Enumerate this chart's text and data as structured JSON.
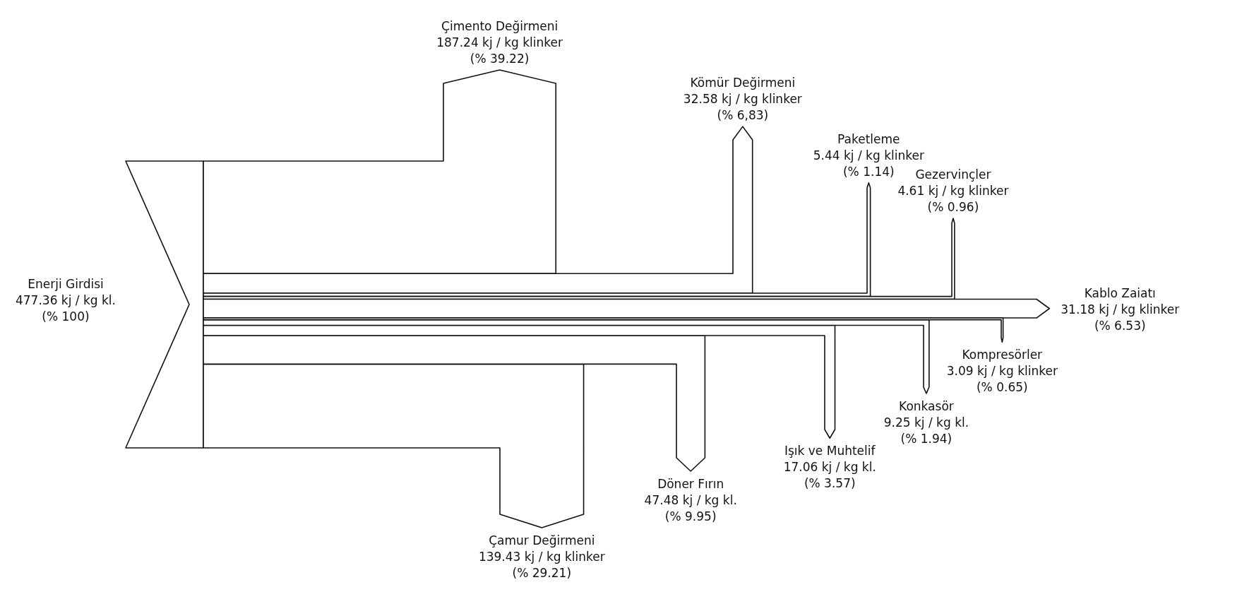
{
  "chart_data": {
    "type": "other",
    "color": "#ffffff",
    "categories": [
      "Enerji Girdisi",
      "Çimento Değirmeni",
      "Kömür Değirmeni",
      "Paketleme",
      "Gezervinçler",
      "Kablo Zaiatı",
      "Çamur Değirmeni",
      "Döner Fırın",
      "Işık ve Muhtelif",
      "Konkasör",
      "Kompresörler"
    ],
    "series": [
      {
        "values": [
          477.36,
          187.24,
          32.58,
          5.44,
          4.61,
          31.18,
          139.43,
          47.48,
          17.06,
          9.25,
          3.09
        ],
        "value_labels": [
          "477.36 kj / kg kl.",
          "187.24 kj / kg klinker",
          "32.58 kj / kg klinker",
          "5.44 kj / kg klinker",
          "4.61 kj / kg klinker",
          "31.18 kj / kg klinker",
          "139.43 kj / kg klinker",
          "47.48 kj / kg kl.",
          "17.06 kj / kg kl.",
          "9.25 kj / kg kl.",
          "3.09 kj / kg klinker"
        ]
      },
      {
        "values": [
          100,
          39.22,
          6.83,
          1.14,
          0.96,
          6.53,
          29.21,
          9.95,
          3.57,
          1.94,
          0.65
        ],
        "value_labels": [
          "(% 100)",
          "(% 39.22)",
          "(% 6,83)",
          "(% 1.14)",
          "(% 0.96)",
          "(% 6.53)",
          "(% 29.21)",
          "(% 9.95)",
          "(% 3.57)",
          "(% 1.94)",
          "(% 0.65)"
        ]
      }
    ]
  }
}
